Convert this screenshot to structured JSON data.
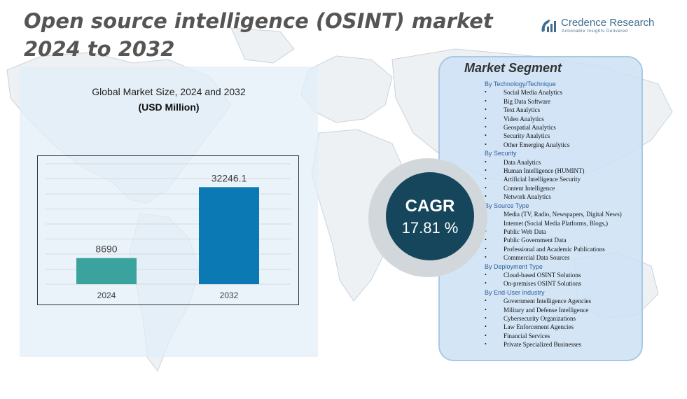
{
  "title": {
    "line1": "Open source intelligence (OSINT) market",
    "line2": "2024 to 2032"
  },
  "logo": {
    "name": "Credence Research",
    "tagline": "Actionable Insights Delivered",
    "color": "#3f6d8f"
  },
  "chart_data": {
    "type": "bar",
    "title": "Global Market Size,  2024 and 2032",
    "subtitle": "(USD Million)",
    "categories": [
      "2024",
      "2032"
    ],
    "values": [
      8690,
      32246.1
    ],
    "value_labels": [
      "8690",
      "32246.1"
    ],
    "colors": [
      "#3aa39e",
      "#0b79b3"
    ],
    "ylim": [
      0,
      40000
    ],
    "grid": true,
    "xlabel": "",
    "ylabel": ""
  },
  "cagr": {
    "label": "CAGR",
    "value": "17.81 %"
  },
  "segments": {
    "title": "Market Segment",
    "groups": [
      {
        "heading": "By Technology/Technique",
        "items": [
          "Social Media Analytics",
          "Big Data Software",
          "Text  Analytics",
          "Video  Analytics",
          "Geospatial Analytics",
          "Security Analytics",
          "Other Emerging  Analytics"
        ]
      },
      {
        "heading": "By Security",
        "items": [
          "Data Analytics",
          "Human Intelligence (HUMINT)",
          "Artificial  Intelligence Security",
          "Content Intelligence",
          "Network Analytics"
        ]
      },
      {
        "heading": "By Source Type",
        "items": [
          "Media (TV,  Radio,  Newspapers, Digital News)",
          "Internet (Social Media Platforms, Blogs,)",
          "Public Web Data",
          "Public Government Data",
          "Professional and Academic Publications",
          "Commercial  Data Sources"
        ]
      },
      {
        "heading": "By Deployment Type",
        "items": [
          "Cloud-based OSINT  Solutions",
          "On-premises  OSINT Solutions"
        ]
      },
      {
        "heading": "By End-User Industry",
        "items": [
          "Government Intelligence Agencies",
          "Military  and Defense Intelligence",
          "Cybersecurity Organizations",
          "Law  Enforcement  Agencies",
          "Financial Services",
          "Private Specialized Businesses"
        ]
      }
    ]
  }
}
